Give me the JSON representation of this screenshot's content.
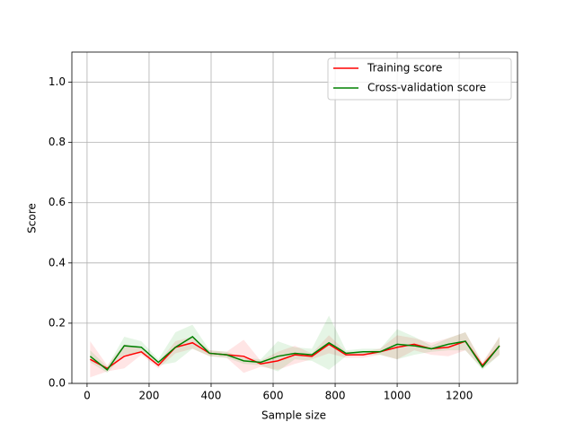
{
  "chart_data": {
    "type": "line",
    "xlabel": "Sample size",
    "ylabel": "Score",
    "x": [
      10,
      65,
      120,
      175,
      230,
      285,
      340,
      395,
      450,
      505,
      560,
      615,
      670,
      725,
      780,
      835,
      890,
      945,
      1000,
      1055,
      1110,
      1165,
      1220,
      1275,
      1330
    ],
    "series": [
      {
        "name": "Training score",
        "color": "#ff0000",
        "band_color": "#ff0000",
        "values": [
          0.08,
          0.05,
          0.09,
          0.105,
          0.06,
          0.12,
          0.135,
          0.1,
          0.095,
          0.09,
          0.065,
          0.075,
          0.095,
          0.09,
          0.13,
          0.095,
          0.095,
          0.105,
          0.12,
          0.13,
          0.115,
          0.12,
          0.14,
          0.06,
          0.125
        ],
        "std": [
          0.06,
          0.01,
          0.04,
          0.01,
          0.01,
          0.02,
          0.02,
          0.01,
          0.01,
          0.055,
          0.01,
          0.03,
          0.03,
          0.01,
          0.03,
          0.01,
          0.01,
          0.01,
          0.04,
          0.02,
          0.02,
          0.03,
          0.03,
          0.01,
          0.03
        ]
      },
      {
        "name": "Cross-validation score",
        "color": "#008000",
        "band_color": "#00a000",
        "values": [
          0.09,
          0.045,
          0.125,
          0.12,
          0.07,
          0.12,
          0.155,
          0.1,
          0.095,
          0.075,
          0.07,
          0.09,
          0.1,
          0.095,
          0.135,
          0.1,
          0.105,
          0.105,
          0.13,
          0.125,
          0.115,
          0.13,
          0.14,
          0.055,
          0.125
        ],
        "std": [
          0.02,
          0.01,
          0.03,
          0.02,
          0.01,
          0.05,
          0.04,
          0.01,
          0.01,
          0.01,
          0.01,
          0.05,
          0.02,
          0.02,
          0.09,
          0.01,
          0.01,
          0.01,
          0.05,
          0.03,
          0.01,
          0.02,
          0.03,
          0.01,
          0.03
        ]
      }
    ],
    "xlim": [
      -49,
      1388
    ],
    "ylim": [
      0,
      1.1
    ],
    "xticks": [
      0,
      200,
      400,
      600,
      800,
      1000,
      1200
    ],
    "yticks": [
      {
        "value": 0,
        "label": "0.0"
      },
      0.2,
      0.4,
      0.6,
      0.8,
      {
        "value": 1,
        "label": "1.0"
      }
    ],
    "grid": true,
    "legend": "upper right"
  }
}
